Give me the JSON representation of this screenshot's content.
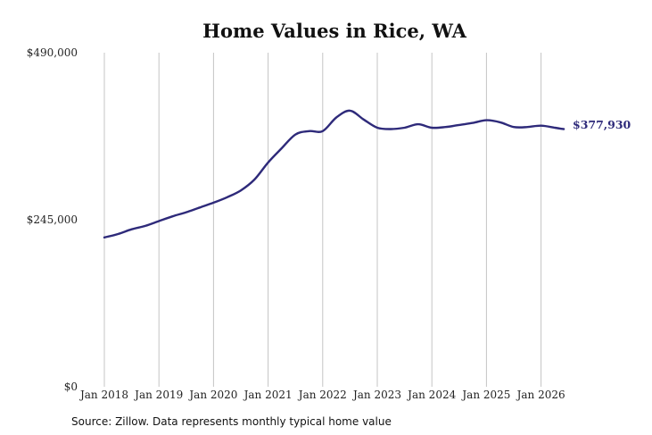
{
  "source_note": "Source: Zillow. Data represents monthly typical home value",
  "colors": {
    "line": "#2e2a7a",
    "grid": "#c4c4c4",
    "text": "#222222"
  },
  "chart_data": {
    "type": "line",
    "title": "Home Values in Rice, WA",
    "xlabel": "",
    "ylabel": "",
    "ylim": [
      0,
      490000
    ],
    "y_ticks": [
      {
        "value": 0,
        "label": "$0"
      },
      {
        "value": 245000,
        "label": "$245,000"
      },
      {
        "value": 490000,
        "label": "$490,000"
      }
    ],
    "x_ticks": [
      {
        "value": "2018-01",
        "label": "Jan 2018"
      },
      {
        "value": "2019-01",
        "label": "Jan 2019"
      },
      {
        "value": "2020-01",
        "label": "Jan 2020"
      },
      {
        "value": "2021-01",
        "label": "Jan 2021"
      },
      {
        "value": "2022-01",
        "label": "Jan 2022"
      },
      {
        "value": "2023-01",
        "label": "Jan 2023"
      },
      {
        "value": "2024-01",
        "label": "Jan 2024"
      },
      {
        "value": "2025-01",
        "label": "Jan 2025"
      },
      {
        "value": "2026-01",
        "label": "Jan 2026"
      }
    ],
    "grid": "vertical",
    "end_label": "$377,930",
    "series": [
      {
        "x": [
          "2018-01",
          "2018-04",
          "2018-07",
          "2018-10",
          "2019-01",
          "2019-04",
          "2019-07",
          "2019-10",
          "2020-01",
          "2020-04",
          "2020-07",
          "2020-10",
          "2021-01",
          "2021-04",
          "2021-07",
          "2021-10",
          "2022-01",
          "2022-04",
          "2022-07",
          "2022-10",
          "2023-01",
          "2023-04",
          "2023-07",
          "2023-10",
          "2024-01",
          "2024-04",
          "2024-07",
          "2024-10",
          "2025-01",
          "2025-04",
          "2025-07",
          "2025-10",
          "2026-01",
          "2026-04",
          "2026-06"
        ],
        "values": [
          219000,
          224000,
          231000,
          236000,
          243000,
          250000,
          256000,
          263000,
          270000,
          278000,
          288000,
          304000,
          329000,
          350000,
          370000,
          375000,
          375000,
          395000,
          405000,
          392000,
          380000,
          378000,
          380000,
          385000,
          380000,
          381000,
          384000,
          387000,
          391000,
          388000,
          381000,
          381000,
          383000,
          380000,
          377930
        ]
      }
    ]
  }
}
